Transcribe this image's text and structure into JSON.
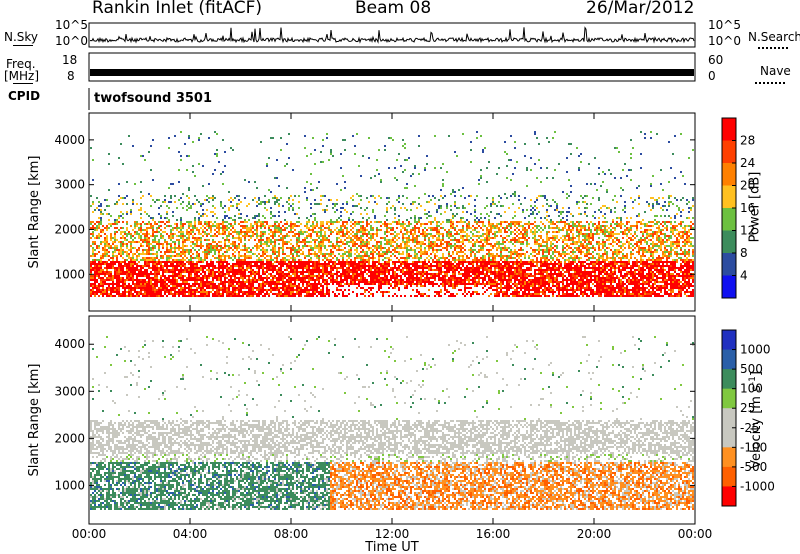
{
  "header": {
    "station": "Rankin Inlet (fitACF)",
    "beam": "Beam 08",
    "date": "26/Mar/2012"
  },
  "noise_panel": {
    "left_label": "N.Sky",
    "left_ticks": [
      "10^5",
      "10^0"
    ],
    "right_label": "N.Search",
    "right_ticks": [
      "10^5",
      "10^0"
    ]
  },
  "freq_panel": {
    "left_label_line1": "Freq.",
    "left_label_line2": "[MHz]",
    "left_ticks": [
      "18",
      "8"
    ],
    "right_label": "Nave",
    "right_ticks": [
      "60",
      "0"
    ]
  },
  "cpid_panel": {
    "label": "CPID",
    "program": "twofsound 3501"
  },
  "chart_data": [
    {
      "type": "heatmap",
      "title": "Power",
      "xlabel": "Time UT",
      "ylabel": "Slant Range [km]",
      "xlim": [
        0,
        24
      ],
      "ylim": [
        180,
        4600
      ],
      "x_ticks": [
        "00:00",
        "04:00",
        "08:00",
        "12:00",
        "16:00",
        "20:00",
        "00:00"
      ],
      "y_ticks": [
        1000,
        2000,
        3000,
        4000
      ],
      "colorbar": {
        "label": "Power [dB]",
        "ticks": [
          "28",
          "24",
          "20",
          "16",
          "12",
          "8",
          "4"
        ],
        "colors": [
          "#ff0000",
          "#ff4000",
          "#ff8000",
          "#ffc020",
          "#6cc040",
          "#3c8c5c",
          "#2c4ca0",
          "#1010f0"
        ]
      },
      "bands": [
        {
          "name": "main_echo_lower",
          "range_km": [
            500,
            1300
          ],
          "hours": [
            0,
            24
          ],
          "power_db": 28
        },
        {
          "name": "main_echo_upper",
          "range_km": [
            1300,
            2200
          ],
          "hours": [
            0,
            24
          ],
          "power_db": 18
        },
        {
          "name": "sparse_high",
          "range_km": [
            2500,
            4200
          ],
          "hours": [
            2,
            23
          ],
          "power_db": 8
        }
      ]
    },
    {
      "type": "heatmap",
      "title": "Velocity",
      "xlabel": "Time UT",
      "ylabel": "Slant Range [km]",
      "xlim": [
        0,
        24
      ],
      "ylim": [
        180,
        4600
      ],
      "x_ticks": [
        "00:00",
        "04:00",
        "08:00",
        "12:00",
        "16:00",
        "20:00",
        "00:00"
      ],
      "y_ticks": [
        1000,
        2000,
        3000,
        4000
      ],
      "colorbar": {
        "label": "Velocity [m s^-1]",
        "ticks": [
          "1000",
          "500",
          "100",
          "25",
          "-25",
          "-100",
          "-500",
          "-1000"
        ],
        "colors": [
          "#2030c0",
          "#2a5fa8",
          "#3c8c5c",
          "#80c840",
          "#c8c8c0",
          "#c8c8c0",
          "#ff9020",
          "#ff6000",
          "#ff0000"
        ]
      },
      "bands": [
        {
          "name": "ground_scatter",
          "range_km": [
            1700,
            2400
          ],
          "hours": [
            0,
            24
          ],
          "velocity": 0
        },
        {
          "name": "positive_band",
          "range_km": [
            500,
            1500
          ],
          "hours": [
            0,
            9.5
          ],
          "velocity": 300
        },
        {
          "name": "negative_band",
          "range_km": [
            500,
            1400
          ],
          "hours": [
            9.5,
            24
          ],
          "velocity": -300
        }
      ]
    }
  ],
  "colors": {
    "frame": "#000000",
    "ground_scatter": "#c8c8c0"
  }
}
